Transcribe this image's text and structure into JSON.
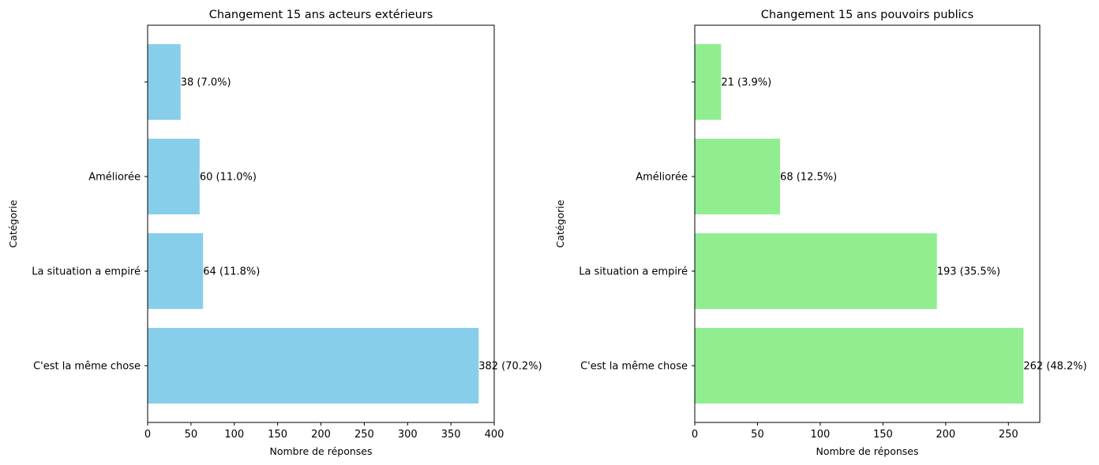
{
  "chart_data": [
    {
      "type": "bar",
      "orientation": "horizontal",
      "title": "Changement 15 ans acteurs extérieurs",
      "xlabel": "Nombre de réponses",
      "ylabel": "Catégorie",
      "categories": [
        "C'est la même chose",
        "La situation a empiré",
        "Améliorée",
        ""
      ],
      "values": [
        382,
        64,
        60,
        38
      ],
      "data_labels": [
        "382 (70.2%)",
        "64 (11.8%)",
        "60 (11.0%)",
        "38 (7.0%)"
      ],
      "xlim": [
        0,
        400
      ],
      "xticks": [
        0,
        50,
        100,
        150,
        200,
        250,
        300,
        350,
        400
      ],
      "color": "#87ceeb",
      "grid": false
    },
    {
      "type": "bar",
      "orientation": "horizontal",
      "title": "Changement 15 ans pouvoirs publics",
      "xlabel": "Nombre de réponses",
      "ylabel": "Catégorie",
      "categories": [
        "C'est la même chose",
        "La situation a empiré",
        "Améliorée",
        ""
      ],
      "values": [
        262,
        193,
        68,
        21
      ],
      "data_labels": [
        "262 (48.2%)",
        "193 (35.5%)",
        "68 (12.5%)",
        "21 (3.9%)"
      ],
      "xlim": [
        0,
        275
      ],
      "xticks": [
        0,
        50,
        100,
        150,
        200,
        250
      ],
      "color": "#90ee90",
      "grid": false
    }
  ]
}
